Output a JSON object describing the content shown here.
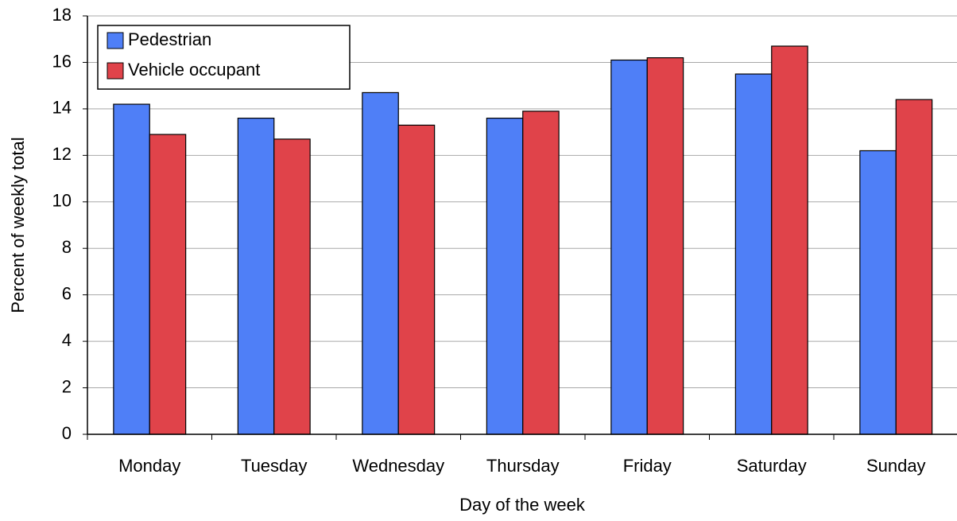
{
  "chart_data": {
    "type": "bar",
    "x_label": "Day of the week",
    "y_label": "Percent of weekly total",
    "categories": [
      "Monday",
      "Tuesday",
      "Wednesday",
      "Thursday",
      "Friday",
      "Saturday",
      "Sunday"
    ],
    "series": [
      {
        "name": "Pedestrian",
        "color": "#4f7ff7",
        "values": [
          14.2,
          13.6,
          14.7,
          13.6,
          16.1,
          15.5,
          12.2
        ]
      },
      {
        "name": "Vehicle occupant",
        "color": "#e0434a",
        "values": [
          12.9,
          12.7,
          13.3,
          13.9,
          16.2,
          16.7,
          14.4
        ]
      }
    ],
    "ylim": [
      0,
      18
    ],
    "yticks": [
      0,
      2,
      4,
      6,
      8,
      10,
      12,
      14,
      16,
      18
    ],
    "grid": true,
    "legend": "upper left"
  }
}
